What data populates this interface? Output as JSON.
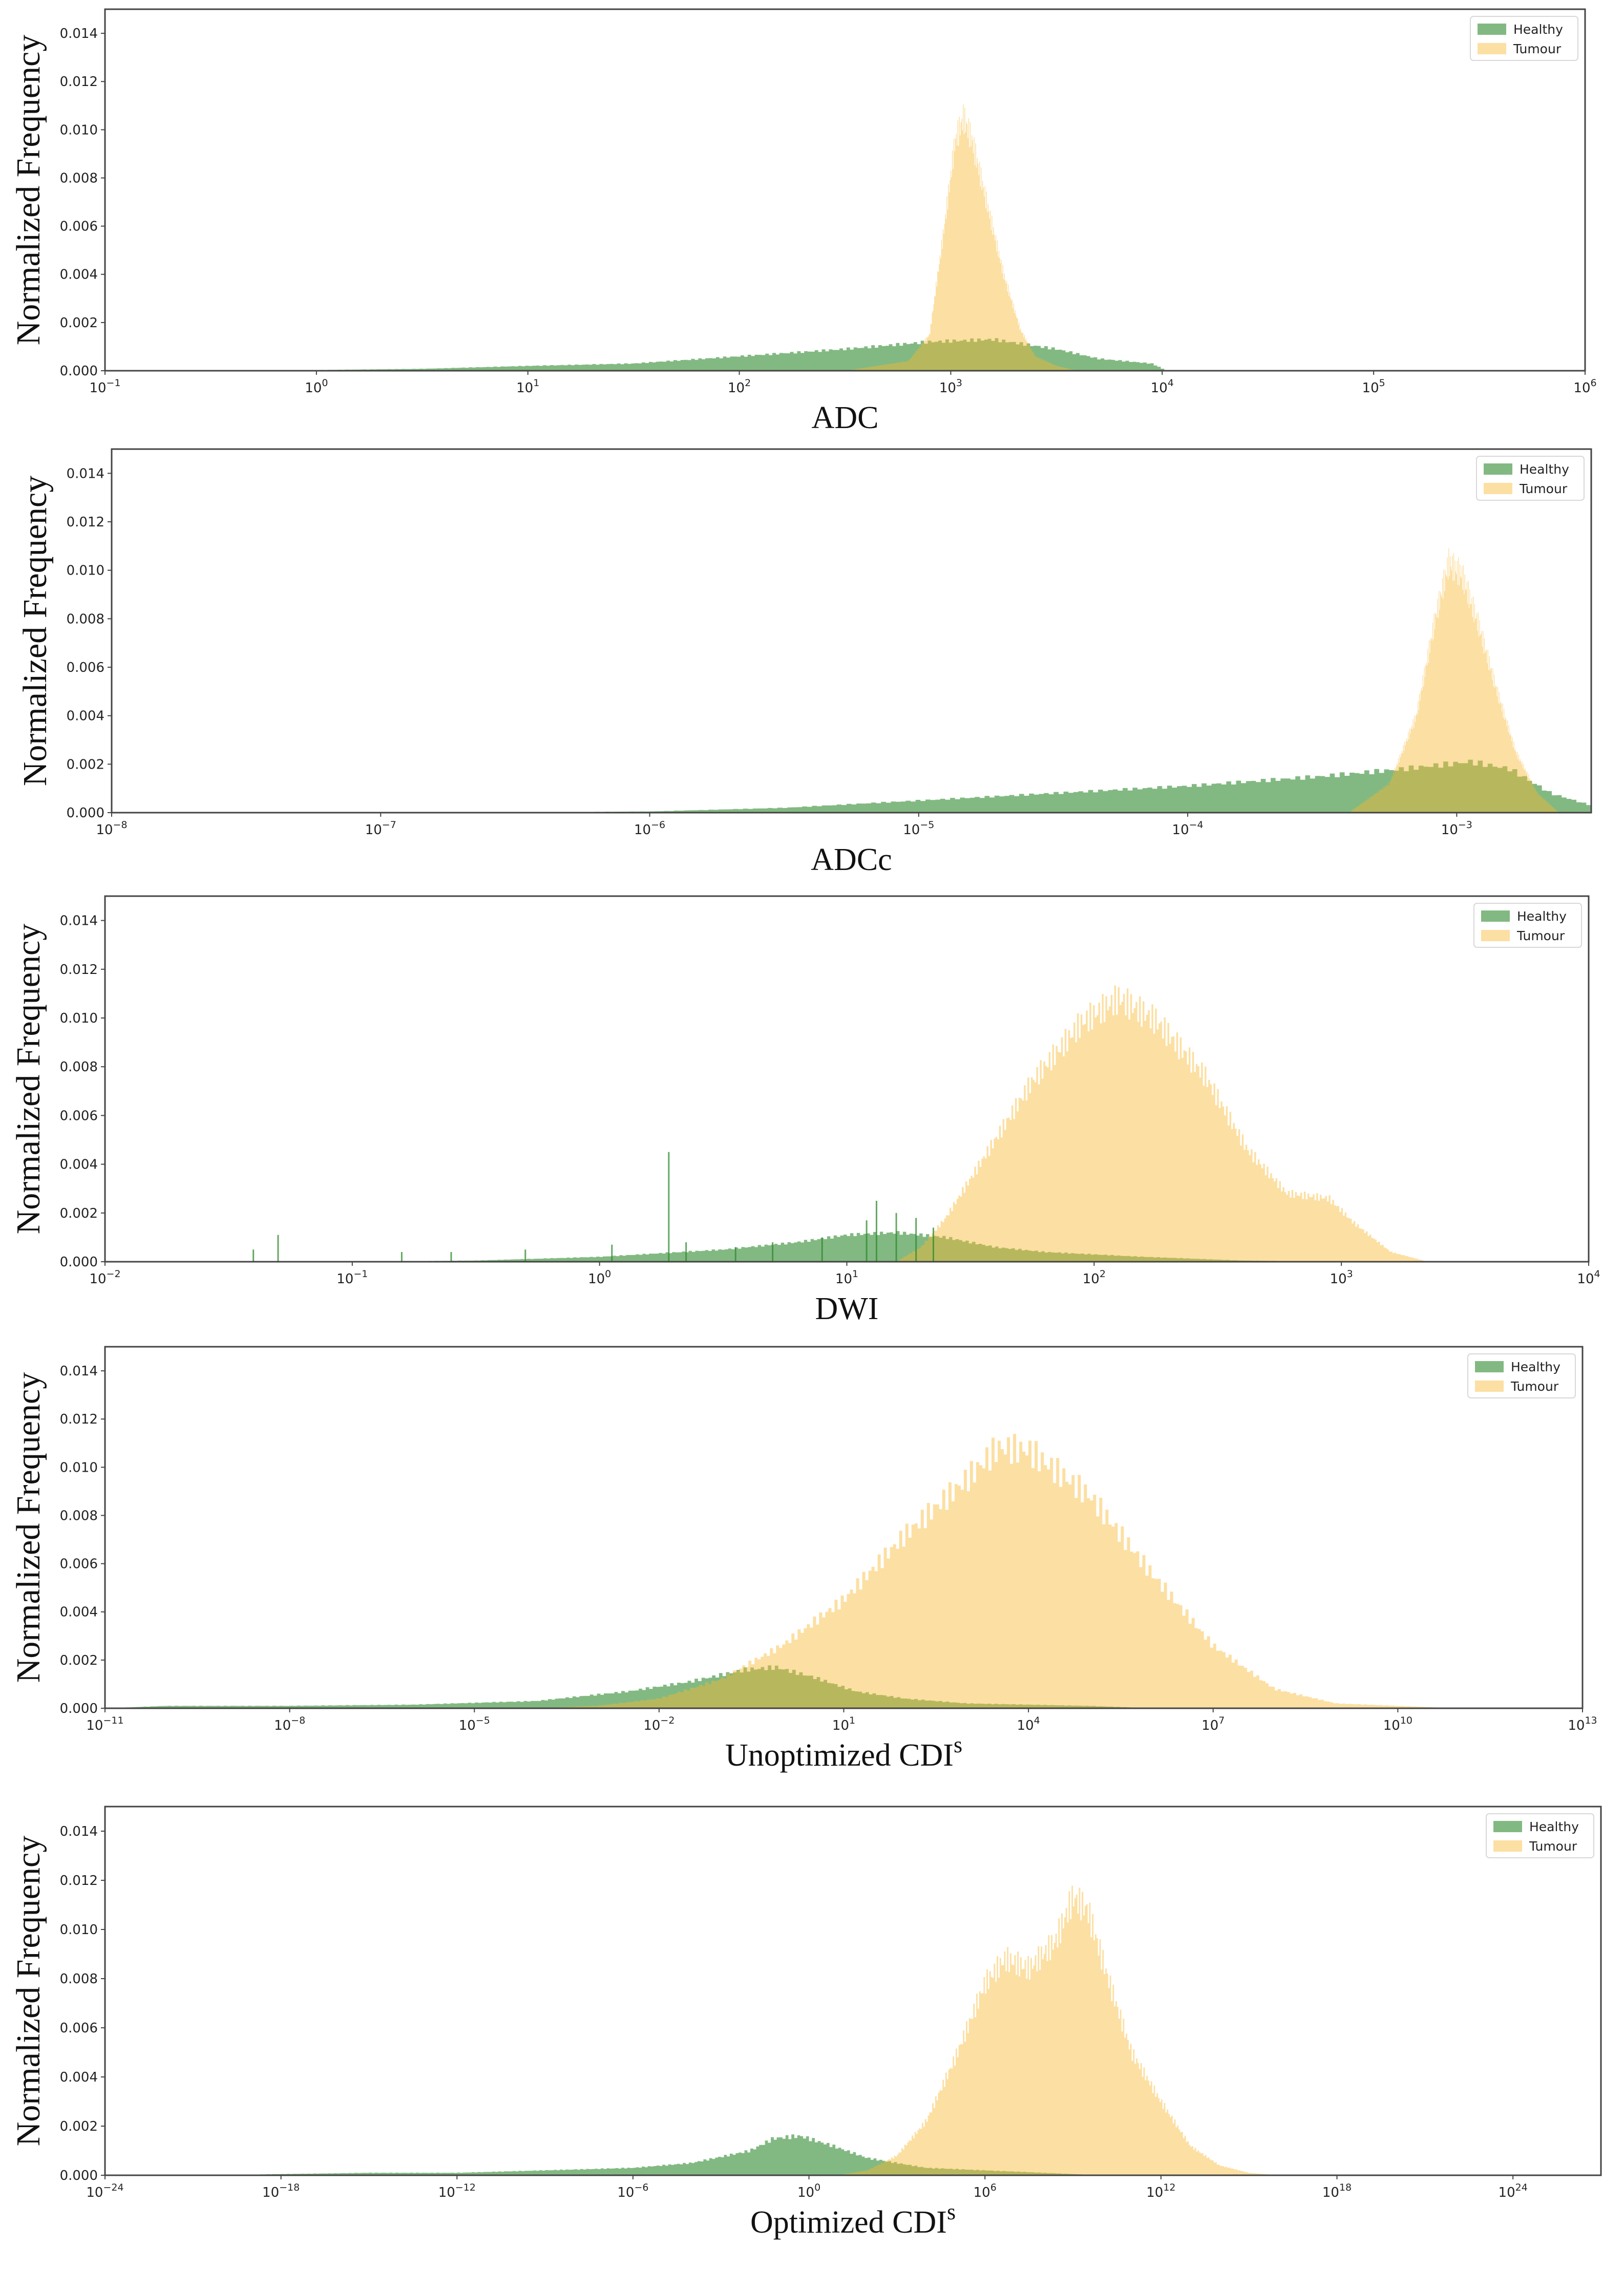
{
  "colors": {
    "healthy": "#2e8b2e",
    "tumour": "#f9b931",
    "frame": "#444444",
    "text": "#222222"
  },
  "panel_ylabel": "Normalized Frequency",
  "y_ticks": [
    "0.000",
    "0.002",
    "0.004",
    "0.006",
    "0.008",
    "0.010",
    "0.012",
    "0.014"
  ],
  "chart_data": [
    {
      "type": "histogram",
      "title": "",
      "xlabel": "ADC",
      "xlabel_sup": "",
      "ylabel": "Normalized Frequency",
      "xscale": "log",
      "xlim_log10": [
        -1,
        6
      ],
      "x_ticks": [
        {
          "base": "10",
          "exp": "−1"
        },
        {
          "base": "10",
          "exp": "0"
        },
        {
          "base": "10",
          "exp": "1"
        },
        {
          "base": "10",
          "exp": "2"
        },
        {
          "base": "10",
          "exp": "3"
        },
        {
          "base": "10",
          "exp": "4"
        },
        {
          "base": "10",
          "exp": "5"
        },
        {
          "base": "10",
          "exp": "6"
        }
      ],
      "ylim": [
        0,
        0.015
      ],
      "legend": [
        "Healthy",
        "Tumour"
      ],
      "legend_position": "top-right",
      "series": [
        {
          "name": "Healthy",
          "points_log10x": [
            [
              -1,
              0
            ],
            [
              -0.5,
              2e-05
            ],
            [
              0,
              3e-05
            ],
            [
              0.5,
              8e-05
            ],
            [
              1,
              0.0002
            ],
            [
              1.5,
              0.0003
            ],
            [
              2,
              0.0006
            ],
            [
              2.5,
              0.0009
            ],
            [
              2.9,
              0.0012
            ],
            [
              3.2,
              0.0013
            ],
            [
              3.5,
              0.0009
            ],
            [
              3.7,
              0.0005
            ],
            [
              3.95,
              0.0003
            ],
            [
              4,
              0.0001
            ],
            [
              4.01,
              0
            ]
          ]
        },
        {
          "name": "Tumour",
          "points_log10x": [
            [
              2.5,
              0
            ],
            [
              2.8,
              0.0004
            ],
            [
              2.9,
              0.0015
            ],
            [
              2.97,
              0.006
            ],
            [
              3.02,
              0.0095
            ],
            [
              3.06,
              0.0105
            ],
            [
              3.1,
              0.0096
            ],
            [
              3.17,
              0.007
            ],
            [
              3.25,
              0.004
            ],
            [
              3.33,
              0.0017
            ],
            [
              3.4,
              0.0006
            ],
            [
              3.5,
              0.0002
            ],
            [
              3.6,
              0
            ]
          ]
        }
      ]
    },
    {
      "type": "histogram",
      "title": "",
      "xlabel": "ADCc",
      "xlabel_sup": "",
      "ylabel": "Normalized Frequency",
      "xscale": "log",
      "xlim_log10": [
        -8,
        -2.5
      ],
      "x_ticks": [
        {
          "base": "10",
          "exp": "−8"
        },
        {
          "base": "10",
          "exp": "−7"
        },
        {
          "base": "10",
          "exp": "−6"
        },
        {
          "base": "10",
          "exp": "−5"
        },
        {
          "base": "10",
          "exp": "−4"
        },
        {
          "base": "10",
          "exp": "−3"
        }
      ],
      "ylim": [
        0,
        0.015
      ],
      "legend": [
        "Healthy",
        "Tumour"
      ],
      "legend_position": "top-right",
      "series": [
        {
          "name": "Healthy",
          "points_log10x": [
            [
              -8,
              0
            ],
            [
              -6.5,
              1e-05
            ],
            [
              -6,
              5e-05
            ],
            [
              -5.5,
              0.0002
            ],
            [
              -5,
              0.0005
            ],
            [
              -4.5,
              0.0008
            ],
            [
              -4,
              0.0011
            ],
            [
              -3.5,
              0.0015
            ],
            [
              -3.2,
              0.0018
            ],
            [
              -2.95,
              0.0021
            ],
            [
              -2.8,
              0.0018
            ],
            [
              -2.65,
              0.0008
            ],
            [
              -2.5,
              0.0003
            ]
          ]
        },
        {
          "name": "Tumour",
          "points_log10x": [
            [
              -3.4,
              0
            ],
            [
              -3.25,
              0.0012
            ],
            [
              -3.15,
              0.004
            ],
            [
              -3.08,
              0.008
            ],
            [
              -3.03,
              0.0103
            ],
            [
              -2.98,
              0.0098
            ],
            [
              -2.92,
              0.0078
            ],
            [
              -2.85,
              0.005
            ],
            [
              -2.78,
              0.0025
            ],
            [
              -2.7,
              0.0008
            ],
            [
              -2.62,
              0
            ]
          ]
        }
      ]
    },
    {
      "type": "histogram",
      "title": "",
      "xlabel": "DWI",
      "xlabel_sup": "",
      "ylabel": "Normalized Frequency",
      "xscale": "log",
      "xlim_log10": [
        -2,
        4
      ],
      "x_ticks": [
        {
          "base": "10",
          "exp": "−2"
        },
        {
          "base": "10",
          "exp": "−1"
        },
        {
          "base": "10",
          "exp": "0"
        },
        {
          "base": "10",
          "exp": "1"
        },
        {
          "base": "10",
          "exp": "2"
        },
        {
          "base": "10",
          "exp": "3"
        },
        {
          "base": "10",
          "exp": "4"
        }
      ],
      "ylim": [
        0,
        0.015
      ],
      "legend": [
        "Healthy",
        "Tumour"
      ],
      "legend_position": "top-right",
      "series": [
        {
          "name": "Healthy",
          "points_log10x": [
            [
              -1,
              0
            ],
            [
              -0.5,
              5e-05
            ],
            [
              0,
              0.0002
            ],
            [
              0.5,
              0.0005
            ],
            [
              0.8,
              0.0008
            ],
            [
              1,
              0.0011
            ],
            [
              1.2,
              0.0012
            ],
            [
              1.4,
              0.001
            ],
            [
              1.6,
              0.0006
            ],
            [
              1.8,
              0.0004
            ],
            [
              2.2,
              0.0002
            ],
            [
              2.6,
              5e-05
            ],
            [
              3,
              0
            ]
          ]
        },
        {
          "name": "Tumour",
          "points_log10x": [
            [
              1.2,
              0
            ],
            [
              1.3,
              0.0006
            ],
            [
              1.4,
              0.0018
            ],
            [
              1.55,
              0.0042
            ],
            [
              1.75,
              0.0074
            ],
            [
              1.95,
              0.0098
            ],
            [
              2.1,
              0.0108
            ],
            [
              2.25,
              0.0099
            ],
            [
              2.45,
              0.0076
            ],
            [
              2.62,
              0.0046
            ],
            [
              2.78,
              0.0028
            ],
            [
              2.95,
              0.0026
            ],
            [
              3.05,
              0.0016
            ],
            [
              3.2,
              0.0004
            ],
            [
              3.35,
              0
            ]
          ]
        }
      ],
      "spikes_healthy_log10x": [
        [
          -1.4,
          0.0005
        ],
        [
          -1.3,
          0.0011
        ],
        [
          -0.8,
          0.0004
        ],
        [
          -0.6,
          0.0004
        ],
        [
          -0.3,
          0.0005
        ],
        [
          0.05,
          0.0007
        ],
        [
          0.28,
          0.0045
        ],
        [
          0.35,
          0.0008
        ],
        [
          0.55,
          0.0006
        ],
        [
          0.7,
          0.0008
        ],
        [
          0.9,
          0.001
        ],
        [
          1.08,
          0.0017
        ],
        [
          1.12,
          0.0025
        ],
        [
          1.2,
          0.002
        ],
        [
          1.28,
          0.0018
        ],
        [
          1.35,
          0.0014
        ]
      ]
    },
    {
      "type": "histogram",
      "title": "",
      "xlabel": "Unoptimized CDI",
      "xlabel_sup": "s",
      "ylabel": "Normalized Frequency",
      "xscale": "log",
      "xlim_log10": [
        -11,
        13
      ],
      "x_ticks": [
        {
          "base": "10",
          "exp": "−11"
        },
        {
          "base": "10",
          "exp": "−8"
        },
        {
          "base": "10",
          "exp": "−5"
        },
        {
          "base": "10",
          "exp": "−2"
        },
        {
          "base": "10",
          "exp": "1"
        },
        {
          "base": "10",
          "exp": "4"
        },
        {
          "base": "10",
          "exp": "7"
        },
        {
          "base": "10",
          "exp": "10"
        },
        {
          "base": "10",
          "exp": "13"
        }
      ],
      "ylim": [
        0,
        0.015
      ],
      "legend": [
        "Healthy",
        "Tumour"
      ],
      "legend_position": "top-right",
      "series": [
        {
          "name": "Healthy",
          "points_log10x": [
            [
              -11,
              0
            ],
            [
              -10,
              0.0001
            ],
            [
              -8,
              0.0001
            ],
            [
              -6,
              0.00015
            ],
            [
              -4,
              0.0003
            ],
            [
              -2.5,
              0.0007
            ],
            [
              -1.5,
              0.0011
            ],
            [
              -0.6,
              0.0016
            ],
            [
              -0.1,
              0.0017
            ],
            [
              0.5,
              0.0013
            ],
            [
              1.2,
              0.0007
            ],
            [
              2,
              0.0004
            ],
            [
              3,
              0.0002
            ],
            [
              5,
              0.0001
            ],
            [
              6,
              0
            ]
          ]
        },
        {
          "name": "Tumour",
          "points_log10x": [
            [
              -4,
              0
            ],
            [
              -3,
              0.0001
            ],
            [
              -2,
              0.0004
            ],
            [
              -1,
              0.0012
            ],
            [
              0,
              0.0026
            ],
            [
              1,
              0.0045
            ],
            [
              2,
              0.0072
            ],
            [
              3,
              0.0095
            ],
            [
              3.5,
              0.0108
            ],
            [
              4,
              0.0107
            ],
            [
              5,
              0.0088
            ],
            [
              6,
              0.0056
            ],
            [
              7,
              0.0026
            ],
            [
              8,
              0.0008
            ],
            [
              9,
              0.0002
            ],
            [
              10,
              0.0001
            ],
            [
              11,
              0
            ]
          ]
        }
      ]
    },
    {
      "type": "histogram",
      "title": "",
      "xlabel": "Optimized CDI",
      "xlabel_sup": "s",
      "ylabel": "Normalized Frequency",
      "xscale": "log",
      "xlim_log10": [
        -24,
        27
      ],
      "x_ticks": [
        {
          "base": "10",
          "exp": "−24"
        },
        {
          "base": "10",
          "exp": "−18"
        },
        {
          "base": "10",
          "exp": "−12"
        },
        {
          "base": "10",
          "exp": "−6"
        },
        {
          "base": "10",
          "exp": "0"
        },
        {
          "base": "10",
          "exp": "6"
        },
        {
          "base": "10",
          "exp": "12"
        },
        {
          "base": "10",
          "exp": "18"
        },
        {
          "base": "10",
          "exp": "24"
        }
      ],
      "ylim": [
        0,
        0.015
      ],
      "legend": [
        "Healthy",
        "Tumour"
      ],
      "legend_position": "top-right",
      "series": [
        {
          "name": "Healthy",
          "points_log10x": [
            [
              -20,
              0
            ],
            [
              -18,
              5e-05
            ],
            [
              -15,
              0.0001
            ],
            [
              -12,
              0.0001
            ],
            [
              -9,
              0.0002
            ],
            [
              -6,
              0.0003
            ],
            [
              -4,
              0.0005
            ],
            [
              -2,
              0.001
            ],
            [
              -1.2,
              0.0015
            ],
            [
              -0.3,
              0.0016
            ],
            [
              0.8,
              0.0012
            ],
            [
              2,
              0.0007
            ],
            [
              4,
              0.0003
            ],
            [
              6,
              0.0002
            ],
            [
              8,
              0.0001
            ],
            [
              10,
              0
            ]
          ]
        },
        {
          "name": "Tumour",
          "points_log10x": [
            [
              1,
              0
            ],
            [
              2,
              0.0002
            ],
            [
              3,
              0.0008
            ],
            [
              4,
              0.0022
            ],
            [
              5,
              0.0048
            ],
            [
              6,
              0.0078
            ],
            [
              6.7,
              0.0088
            ],
            [
              7.5,
              0.0084
            ],
            [
              8.4,
              0.0095
            ],
            [
              9,
              0.0113
            ],
            [
              9.5,
              0.0108
            ],
            [
              10.2,
              0.008
            ],
            [
              11,
              0.005
            ],
            [
              12,
              0.003
            ],
            [
              13,
              0.0012
            ],
            [
              14,
              0.0004
            ],
            [
              15,
              0.0001
            ],
            [
              16,
              0
            ]
          ]
        }
      ]
    }
  ]
}
